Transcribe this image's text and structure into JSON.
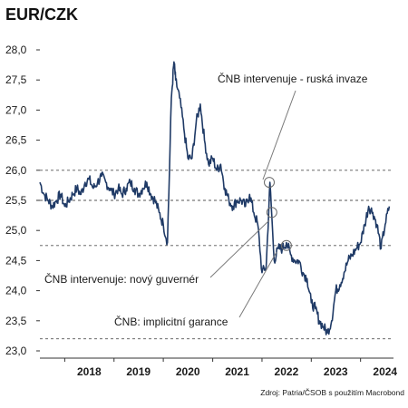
{
  "chart_data": {
    "type": "line",
    "title": "EUR/CZK",
    "ylim": [
      23.0,
      28.0
    ],
    "y_ticks": [
      "28,0",
      "27,5",
      "27,0",
      "26,5",
      "26,0",
      "25,5",
      "25,0",
      "24,5",
      "24,0",
      "23,5",
      "23,0"
    ],
    "x_labels": [
      "2018",
      "2019",
      "2020",
      "2021",
      "2022",
      "2023",
      "2024"
    ],
    "xlim": [
      "2017-07",
      "2024-09"
    ],
    "reference_lines": [
      26.0,
      25.5,
      24.75,
      23.2
    ],
    "series": [
      {
        "color": "#1f3a66",
        "x": [
          "2017-07-01",
          "2017-08-01",
          "2017-09-01",
          "2017-10-01",
          "2017-11-01",
          "2017-12-01",
          "2018-01-01",
          "2018-02-01",
          "2018-03-01",
          "2018-04-01",
          "2018-05-01",
          "2018-06-01",
          "2018-07-01",
          "2018-08-01",
          "2018-09-01",
          "2018-10-01",
          "2018-11-01",
          "2018-12-01",
          "2019-01-01",
          "2019-02-01",
          "2019-03-01",
          "2019-04-01",
          "2019-05-01",
          "2019-06-01",
          "2019-07-01",
          "2019-08-01",
          "2019-09-01",
          "2019-10-01",
          "2019-11-01",
          "2019-12-01",
          "2020-01-01",
          "2020-02-01",
          "2020-03-01",
          "2020-03-20",
          "2020-04-01",
          "2020-05-01",
          "2020-06-01",
          "2020-07-01",
          "2020-08-01",
          "2020-09-01",
          "2020-10-01",
          "2020-11-01",
          "2020-12-01",
          "2021-01-01",
          "2021-02-01",
          "2021-03-01",
          "2021-04-01",
          "2021-05-01",
          "2021-06-01",
          "2021-07-01",
          "2021-08-01",
          "2021-09-01",
          "2021-10-01",
          "2021-11-01",
          "2021-12-01",
          "2022-01-01",
          "2022-02-01",
          "2022-03-01",
          "2022-04-01",
          "2022-05-01",
          "2022-06-01",
          "2022-07-01",
          "2022-08-01",
          "2022-09-01",
          "2022-10-01",
          "2022-11-01",
          "2022-12-01",
          "2023-01-01",
          "2023-02-01",
          "2023-03-01",
          "2023-04-01",
          "2023-05-01",
          "2023-06-01",
          "2023-07-01",
          "2023-08-01",
          "2023-09-01",
          "2023-10-01",
          "2023-11-01",
          "2023-12-01",
          "2024-01-01",
          "2024-02-01",
          "2024-03-01",
          "2024-04-01",
          "2024-05-01",
          "2024-06-01",
          "2024-07-01",
          "2024-08-01"
        ],
        "y": [
          25.8,
          25.6,
          25.5,
          25.4,
          25.5,
          25.6,
          25.4,
          25.5,
          25.6,
          25.7,
          25.6,
          25.8,
          25.85,
          25.7,
          25.8,
          25.9,
          25.8,
          25.7,
          25.6,
          25.7,
          25.6,
          25.7,
          25.8,
          25.7,
          25.6,
          25.7,
          25.8,
          25.6,
          25.5,
          25.3,
          25.1,
          24.8,
          27.2,
          27.8,
          27.5,
          27.2,
          26.7,
          26.2,
          26.2,
          26.8,
          27.1,
          26.5,
          26.1,
          26.2,
          26.0,
          26.1,
          25.7,
          25.5,
          25.4,
          25.5,
          25.5,
          25.4,
          25.6,
          25.3,
          25.1,
          24.3,
          24.4,
          25.8,
          24.5,
          24.7,
          24.7,
          24.8,
          24.6,
          24.5,
          24.5,
          24.3,
          24.2,
          23.8,
          23.7,
          23.5,
          23.4,
          23.3,
          23.5,
          24.0,
          24.1,
          24.3,
          24.5,
          24.6,
          24.7,
          24.8,
          25.1,
          25.4,
          25.3,
          25.1,
          24.7,
          25.1,
          25.4
        ]
      }
    ],
    "markers": [
      {
        "x": "2022-02-24",
        "y": 25.8
      },
      {
        "x": "2022-03-15",
        "y": 25.3
      },
      {
        "x": "2022-07-01",
        "y": 24.75
      }
    ],
    "annotations": [
      {
        "text": "ČNB intervenuje - ruská invaze"
      },
      {
        "text": "ČNB intervenuje: nový guvernér"
      },
      {
        "text": "ČNB: implicitní garance"
      }
    ],
    "source": "Zdroj: Patria/ČSOB s použitím Macrobond"
  }
}
